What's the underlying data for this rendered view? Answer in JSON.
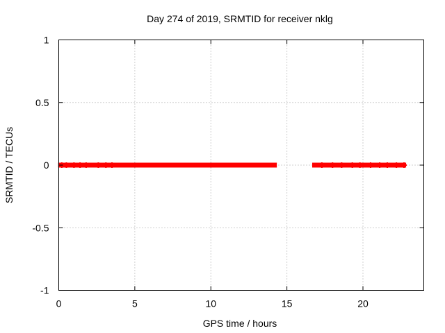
{
  "chart_data": {
    "type": "scatter",
    "title": "Day 274 of 2019, SRMTID for receiver nklg",
    "xlabel": "GPS time / hours",
    "ylabel": "SRMTID / TECUs",
    "xlim": [
      0,
      24
    ],
    "ylim": [
      -1,
      1
    ],
    "xticks": [
      0,
      5,
      10,
      15,
      20
    ],
    "xtick_labels": [
      "0",
      "5",
      "10",
      "15",
      "20"
    ],
    "yticks": [
      1,
      0.5,
      0,
      -0.5,
      -1
    ],
    "ytick_labels": [
      "1",
      "0.5",
      "0",
      "-0.5",
      "-1"
    ],
    "grid": true,
    "marker_color": "#ff0000",
    "series": [
      {
        "name": "SRMTID",
        "segments": [
          {
            "x_start": 0.1,
            "x_end": 14.2,
            "y": 0
          },
          {
            "x_start": 16.8,
            "x_end": 22.7,
            "y": 0
          }
        ],
        "points": [
          {
            "x": 0.2,
            "y": 0
          },
          {
            "x": 0.5,
            "y": 0
          },
          {
            "x": 1.0,
            "y": 0
          },
          {
            "x": 1.4,
            "y": 0
          },
          {
            "x": 1.8,
            "y": 0
          },
          {
            "x": 2.6,
            "y": 0
          },
          {
            "x": 3.1,
            "y": 0
          },
          {
            "x": 3.5,
            "y": 0
          },
          {
            "x": 17.3,
            "y": 0
          },
          {
            "x": 18.0,
            "y": 0
          },
          {
            "x": 18.6,
            "y": 0
          },
          {
            "x": 19.3,
            "y": 0
          },
          {
            "x": 19.8,
            "y": 0
          },
          {
            "x": 20.5,
            "y": 0
          },
          {
            "x": 21.1,
            "y": 0
          },
          {
            "x": 21.6,
            "y": 0
          },
          {
            "x": 22.2,
            "y": 0
          },
          {
            "x": 22.7,
            "y": 0
          }
        ]
      }
    ]
  }
}
